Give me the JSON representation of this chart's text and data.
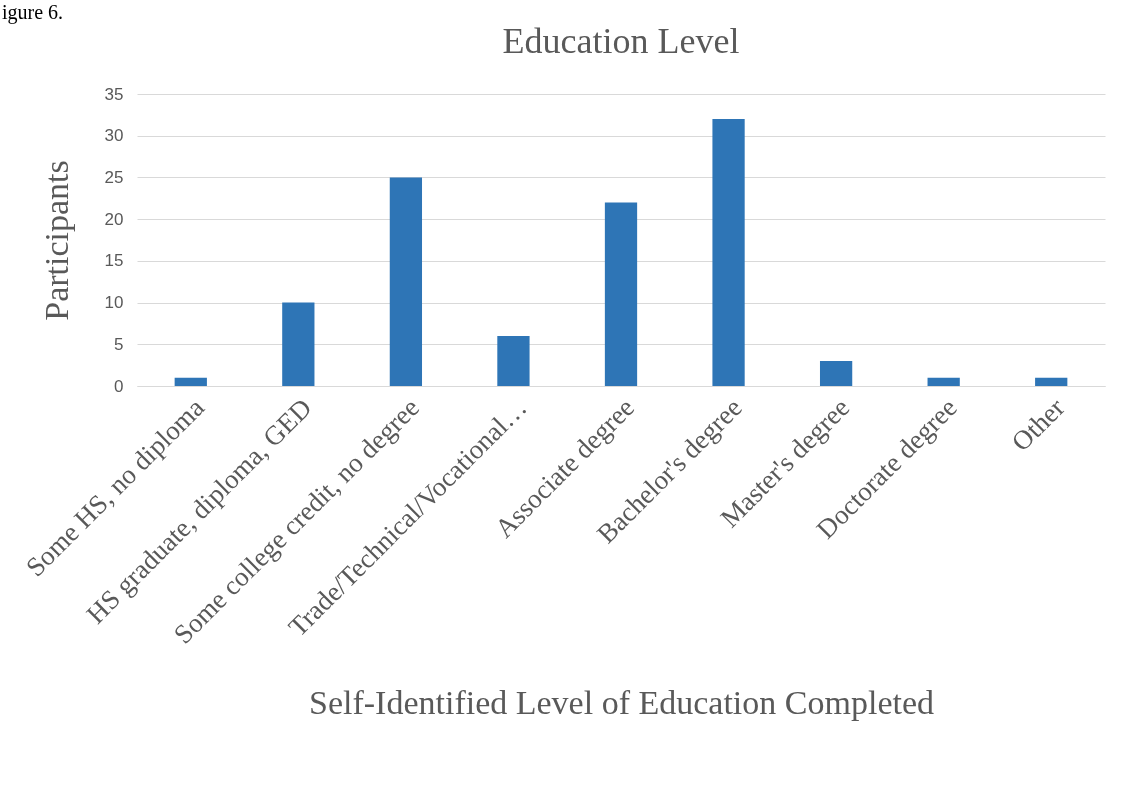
{
  "chart_data": {
    "type": "bar",
    "title": "Education Level",
    "xlabel": "Self-Identified Level of Education Completed",
    "ylabel": "Participants",
    "annotations": [
      "igure 6."
    ],
    "categories": [
      "Some HS, no diploma",
      "HS graduate, diploma, GED",
      "Some college credit, no degree",
      "Trade/Technical/Vocational…",
      "Associate degree",
      "Bachelor's degree",
      "Master's degree",
      "Doctorate degree",
      "Other"
    ],
    "values": [
      1,
      10,
      25,
      6,
      22,
      32,
      3,
      1,
      1
    ],
    "color": "#2e75b6",
    "ylim": [
      0,
      35
    ],
    "yticks": [
      0,
      5,
      10,
      15,
      20,
      25,
      30,
      35
    ],
    "grid": "y"
  }
}
